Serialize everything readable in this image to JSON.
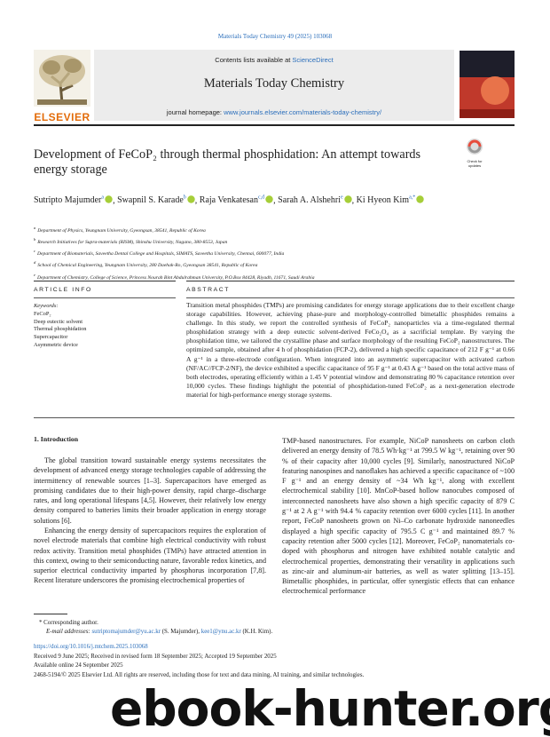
{
  "journal_reference": "Materials Today Chemistry 49 (2025) 103068",
  "header": {
    "publisher": "ELSEVIER",
    "contents_text": "Contents lists available at ",
    "contents_link": "ScienceDirect",
    "journal_name": "Materials Today Chemistry",
    "homepage_label": "journal homepage: ",
    "homepage_url": "www.journals.elsevier.com/materials-today-chemistry/"
  },
  "title": "Development of FeCoP₂ through thermal phosphidation: An attempt towards energy storage",
  "check_updates": "Check for updates",
  "authors": [
    {
      "name": "Sutripto Majumder",
      "sup": "a"
    },
    {
      "name": "Swapnil S. Karade",
      "sup": "b"
    },
    {
      "name": "Raja Venkatesan",
      "sup": "c,d"
    },
    {
      "name": "Sarah A. Alshehri",
      "sup": "e"
    },
    {
      "name": "Ki Hyeon Kim",
      "sup": "a,*"
    }
  ],
  "affiliations": [
    {
      "sup": "a",
      "text": "Department of Physics, Yeungnam University, Gyeongsan, 38541, Republic of Korea"
    },
    {
      "sup": "b",
      "text": "Research Initiatives for Supra-materials (RISM), Shinshu University, Nagano, 380-8553, Japan"
    },
    {
      "sup": "c",
      "text": "Department of Biomaterials, Saveetha Dental College and Hospitals, SIMATS, Saveetha University, Chennai, 600077, India"
    },
    {
      "sup": "d",
      "text": "School of Chemical Engineering, Yeungnam University, 280 Daehak-Ro, Gyeongsan 38541, Republic of Korea"
    },
    {
      "sup": "e",
      "text": "Department of Chemistry, College of Science, Princess Nourah Bint Abdulrahman University, P.O.Box 84428, Riyadh, 11671, Saudi Arabia"
    }
  ],
  "article_info": {
    "heading": "ARTICLE INFO",
    "keywords_label": "Keywords:",
    "keywords": [
      "FeCoP₂",
      "Deep eutectic solvent",
      "Thermal phosphidation",
      "Supercapacitor",
      "Asymmetric device"
    ]
  },
  "abstract": {
    "heading": "ABSTRACT",
    "text": "Transition metal phosphides (TMPs) are promising candidates for energy storage applications due to their excellent charge storage capabilities. However, achieving phase-pure and morphology-controlled bimetallic phosphides remains a challenge. In this study, we report the controlled synthesis of FeCoP₂ nanoparticles via a time-regulated thermal phosphidation strategy with a deep eutectic solvent-derived FeCo₂O₄ as a sacrificial template. By varying the phosphidation time, we tailored the crystalline phase and surface morphology of the resulting FeCoP₂ nanostructures. The optimized sample, obtained after 4 h of phosphidation (FCP-2), delivered a high specific capacitance of 212 F g⁻¹ at 0.66 A g⁻¹ in a three-electrode configuration. When integrated into an asymmetric supercapacitor with activated carbon (NF/AC//FCP-2/NF), the device exhibited a specific capacitance of 95 F g⁻¹ at 0.43 A g⁻¹ based on the total active mass of both electrodes, operating efficiently within a 1.45 V potential window and demonstrating 80 % capacitance retention over 10,000 cycles. These findings highlight the potential of phosphidation-tuned FeCoP₂ as a next-generation electrode material for high-performance energy storage systems."
  },
  "introduction": {
    "heading": "1. Introduction",
    "paragraphs": [
      "The global transition toward sustainable energy systems necessitates the development of advanced energy storage technologies capable of addressing the intermittency of renewable sources [1–3]. Supercapacitors have emerged as promising candidates due to their high-power density, rapid charge–discharge rates, and long operational lifespans [4,5]. However, their relatively low energy density compared to batteries limits their broader application in energy storage solutions [6].",
      "Enhancing the energy density of supercapacitors requires the exploration of novel electrode materials that combine high electrical conductivity with robust redox activity. Transition metal phosphides (TMPs) have attracted attention in this context, owing to their semiconducting nature, favorable redox kinetics, and superior electrical conductivity imparted by phosphorus incorporation [7,8]. Recent literature underscores the promising electrochemical properties of",
      "TMP-based nanostructures. For example, NiCoP nanosheets on carbon cloth delivered an energy density of 78.5 Wh·kg⁻¹ at 799.5 W kg⁻¹, retaining over 90 % of their capacity after 10,000 cycles [9]. Similarly, nanostructured NiCoP featuring nanospines and nanoflakes has achieved a specific capacitance of ~100 F g⁻¹ and an energy density of ~34 Wh kg⁻¹, along with excellent electrochemical stability [10]. MnCoP-based hollow nanocubes composed of interconnected nanosheets have also shown a high specific capacity of 879 C g⁻¹ at 2 A g⁻¹ with 94.4 % capacity retention over 6000 cycles [11]. In another report, FeCoP nanosheets grown on Ni–Co carbonate hydroxide nanoneedles displayed a high specific capacity of 795.5 C g⁻¹ and maintained 89.7 % capacity retention after 5000 cycles [12]. Moreover, FeCoP₂ nanomaterials co-doped with phosphorus and nitrogen have exhibited notable catalytic and electrochemical properties, demonstrating their versatility in applications such as zinc-air and aluminum-air batteries, as well as water splitting [13–15]. Bimetallic phosphides, in particular, offer synergistic effects that can enhance electrochemical performance"
    ]
  },
  "footnote": {
    "corresponding": "* Corresponding author.",
    "email_label": "E-mail addresses:",
    "emails": [
      {
        "address": "sutriptomajumder@yu.ac.kr",
        "owner": "(S. Majumder)"
      },
      {
        "address": "kee1@ynu.ac.kr",
        "owner": "(K.H. Kim)."
      }
    ],
    "separator": ","
  },
  "publication": {
    "doi": "https://doi.org/10.1016/j.mtchem.2025.103068",
    "dates": "Received 9 June 2025; Received in revised form 18 September 2025; Accepted 19 September 2025",
    "online": "Available online 24 September 2025",
    "copyright": "2468-5194/© 2025 Elsevier Ltd. All rights are reserved, including those for text and data mining, AI training, and similar technologies."
  },
  "watermark": "ebook-hunter.org"
}
